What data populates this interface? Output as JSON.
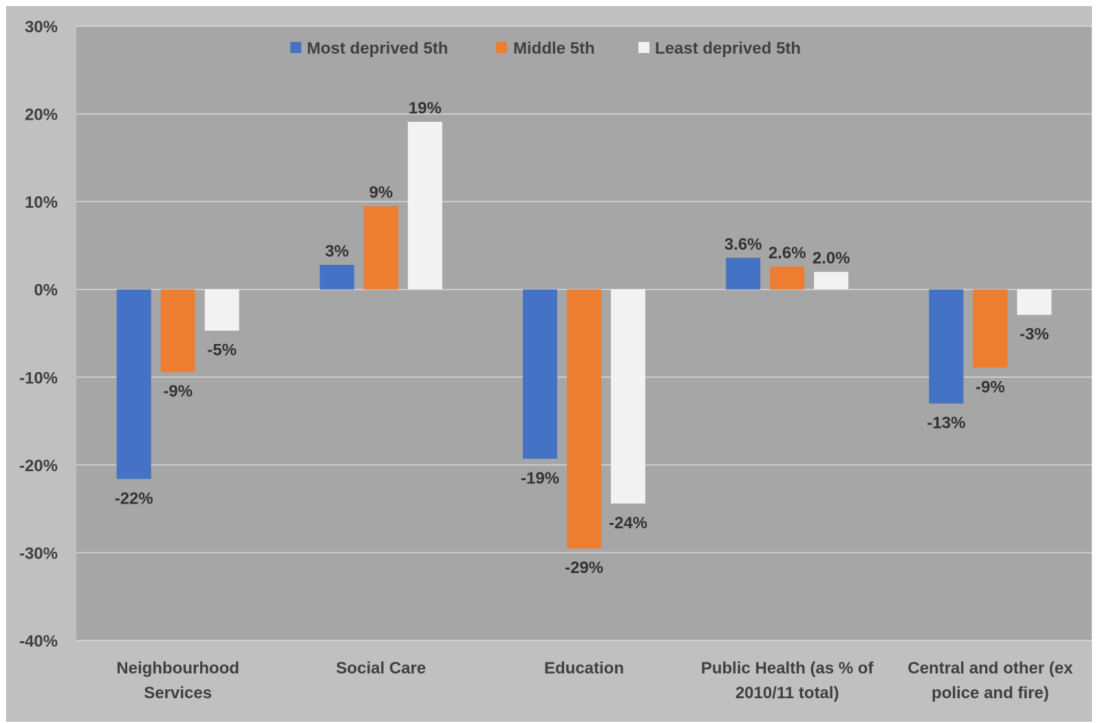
{
  "chart_data": {
    "type": "bar",
    "title": "",
    "xlabel": "",
    "ylabel": "",
    "ylim": [
      -40,
      30
    ],
    "y_ticks": [
      "30%",
      "20%",
      "10%",
      "0%",
      "-10%",
      "-20%",
      "-30%",
      "-40%"
    ],
    "y_tick_values": [
      30,
      20,
      10,
      0,
      -10,
      -20,
      -30,
      -40
    ],
    "grid": true,
    "legend_position": "top-center",
    "categories": [
      [
        "Neighbourhood",
        "Services"
      ],
      [
        "Social Care"
      ],
      [
        "Education"
      ],
      [
        "Public Health (as % of",
        "2010/11 total)"
      ],
      [
        "Central and other (ex",
        "police and fire)"
      ]
    ],
    "series": [
      {
        "name": "Most deprived 5th",
        "color": "#4472c4",
        "values": [
          -21.6,
          2.8,
          -19.3,
          3.6,
          -13.0
        ],
        "labels": [
          "-22%",
          "3%",
          "-19%",
          "3.6%",
          "-13%"
        ]
      },
      {
        "name": "Middle 5th",
        "color": "#ed7d31",
        "values": [
          -9.4,
          9.5,
          -29.5,
          2.6,
          -8.9
        ],
        "labels": [
          "-9%",
          "9%",
          "-29%",
          "2.6%",
          "-9%"
        ]
      },
      {
        "name": "Least deprived 5th",
        "color": "#f2f2f2",
        "values": [
          -4.7,
          19.1,
          -24.4,
          2.0,
          -2.9
        ],
        "labels": [
          "-5%",
          "19%",
          "-24%",
          "2.0%",
          "-3%"
        ]
      }
    ]
  },
  "colors": {
    "background": "#c0c0c0",
    "plot_area": "#a6a6a6",
    "gridline": "#d9d9d9",
    "text": "#404040"
  }
}
